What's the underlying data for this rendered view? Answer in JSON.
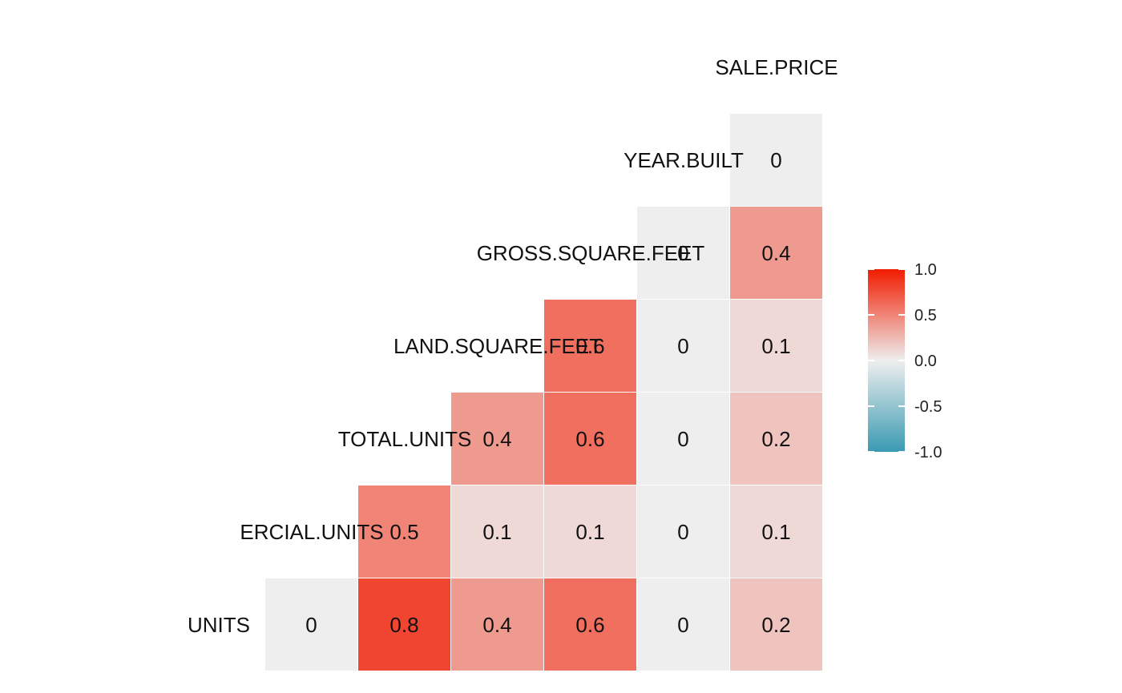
{
  "chart_data": {
    "type": "heatmap",
    "variables": [
      "RESIDENTIAL.UNITS",
      "COMMERCIAL.UNITS",
      "TOTAL.UNITS",
      "LAND.SQUARE.FEET",
      "GROSS.SQUARE.FEET",
      "YEAR.BUILT",
      "SALE.PRICE"
    ],
    "variable_labels": [
      "UNITS",
      "ERCIAL.UNITS",
      "TOTAL.UNITS",
      "LAND.SQUARE.FEET",
      "GROSS.SQUARE.FEET",
      "YEAR.BUILT",
      "SALE.PRICE"
    ],
    "rows": [
      {
        "row": 0,
        "values": [
          0,
          0.8,
          0.4,
          0.6,
          0,
          0.2
        ],
        "labels": [
          "0",
          "0.8",
          "0.4",
          "0.6",
          "0",
          "0.2"
        ]
      },
      {
        "row": 1,
        "values": [
          0.5,
          0.1,
          0.1,
          0,
          0.1
        ],
        "labels": [
          "0.5",
          "0.1",
          "0.1",
          "0",
          "0.1"
        ]
      },
      {
        "row": 2,
        "values": [
          0.4,
          0.6,
          0,
          0.2
        ],
        "labels": [
          "0.4",
          "0.6",
          "0",
          "0.2"
        ]
      },
      {
        "row": 3,
        "values": [
          0.6,
          0,
          0.1
        ],
        "labels": [
          "0.6",
          "0",
          "0.1"
        ]
      },
      {
        "row": 4,
        "values": [
          0,
          0.4
        ],
        "labels": [
          "0",
          "0.4"
        ]
      },
      {
        "row": 5,
        "values": [
          0
        ],
        "labels": [
          "0"
        ]
      }
    ],
    "value_range": [
      -1,
      1
    ],
    "legend": {
      "position": "right",
      "ticks": [
        1.0,
        0.5,
        0.0,
        -0.5,
        -1.0
      ],
      "tick_labels": [
        "1.0",
        "0.5",
        "0.0",
        "-0.5",
        "-1.0"
      ],
      "colors": {
        "low": "#3A9AB2",
        "mid": "#EEEEEE",
        "high": "#F11B00"
      }
    }
  }
}
